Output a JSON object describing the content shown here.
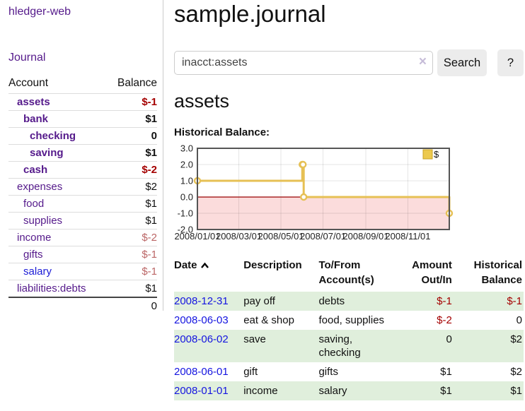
{
  "sidebar": {
    "app_title": "hledger-web",
    "journal_label": "Journal",
    "accounts_table": {
      "headers": [
        "Account",
        "Balance"
      ],
      "rows": [
        {
          "label": "assets",
          "balance": "$-1",
          "indent": 1,
          "bold": true,
          "balance_tone": "negative-strong",
          "link_tone": "purple"
        },
        {
          "label": "bank",
          "balance": "$1",
          "indent": 2,
          "bold": true,
          "balance_tone": "normal",
          "link_tone": "purple"
        },
        {
          "label": "checking",
          "balance": "0",
          "indent": 3,
          "bold": true,
          "balance_tone": "normal",
          "link_tone": "purple"
        },
        {
          "label": "saving",
          "balance": "$1",
          "indent": 3,
          "bold": true,
          "balance_tone": "normal",
          "link_tone": "purple"
        },
        {
          "label": "cash",
          "balance": "$-2",
          "indent": 2,
          "bold": true,
          "balance_tone": "negative-strong",
          "link_tone": "purple"
        },
        {
          "label": "expenses",
          "balance": "$2",
          "indent": 1,
          "bold": false,
          "balance_tone": "normal",
          "link_tone": "purple"
        },
        {
          "label": "food",
          "balance": "$1",
          "indent": 2,
          "bold": false,
          "balance_tone": "normal",
          "link_tone": "purple"
        },
        {
          "label": "supplies",
          "balance": "$1",
          "indent": 2,
          "bold": false,
          "balance_tone": "normal",
          "link_tone": "purple"
        },
        {
          "label": "income",
          "balance": "$-2",
          "indent": 1,
          "bold": false,
          "balance_tone": "negative-soft",
          "link_tone": "purple"
        },
        {
          "label": "gifts",
          "balance": "$-1",
          "indent": 2,
          "bold": false,
          "balance_tone": "negative-soft",
          "link_tone": "purple"
        },
        {
          "label": "salary",
          "balance": "$-1",
          "indent": 2,
          "bold": false,
          "balance_tone": "negative-soft",
          "link_tone": "blue"
        },
        {
          "label": "liabilities:debts",
          "balance": "$1",
          "indent": 1,
          "bold": false,
          "balance_tone": "normal",
          "link_tone": "purple"
        }
      ],
      "total": "0"
    }
  },
  "header": {
    "title": "sample.journal",
    "search": {
      "value": "inacct:assets",
      "clear_icon": "×",
      "button_label": "Search",
      "help_label": "?"
    }
  },
  "account_page": {
    "title": "assets",
    "chart_label": "Historical Balance:"
  },
  "chart_data": {
    "type": "line",
    "step": true,
    "title": "Historical Balance:",
    "legend": "$",
    "legend_position": "top-right",
    "grid": true,
    "ylim": [
      -2.0,
      3.0
    ],
    "yticks": [
      "3.0",
      "2.0",
      "1.0",
      "0.0",
      "-1.0",
      "-2.0"
    ],
    "xticks": [
      "2008/01/01",
      "2008/03/01",
      "2008/05/01",
      "2008/07/01",
      "2008/09/01",
      "2008/11/01"
    ],
    "series": [
      {
        "name": "$",
        "points": [
          [
            "2008-01-01",
            1
          ],
          [
            "2008-06-01",
            2
          ],
          [
            "2008-06-02",
            2
          ],
          [
            "2008-06-03",
            0
          ],
          [
            "2008-12-31",
            -1
          ]
        ]
      }
    ],
    "colors": {
      "line": "#e6c054",
      "marker_fill": "#ffffff",
      "legend_fill": "#ecc94e",
      "legend_border": "#c9a227",
      "negative_area": "#fbdcdc",
      "zero_line": "#990000",
      "grid": "#000000",
      "border": "#555555",
      "tick_text": "#222222"
    }
  },
  "register_table": {
    "headers": [
      "Date",
      "Description",
      "To/From Account(s)",
      "Amount Out/In",
      "Historical Balance"
    ],
    "sort_icon": "chevron-up",
    "rows": [
      {
        "date": "2008-12-31",
        "description": "pay off",
        "accounts": "debts",
        "amount": "$-1",
        "balance": "$-1"
      },
      {
        "date": "2008-06-03",
        "description": "eat & shop",
        "accounts": "food, supplies",
        "amount": "$-2",
        "balance": "0"
      },
      {
        "date": "2008-06-02",
        "description": "save",
        "accounts": "saving, checking",
        "amount": "0",
        "balance": "$2"
      },
      {
        "date": "2008-06-01",
        "description": "gift",
        "accounts": "gifts",
        "amount": "$1",
        "balance": "$2"
      },
      {
        "date": "2008-01-01",
        "description": "income",
        "accounts": "salary",
        "amount": "$1",
        "balance": "$1"
      }
    ]
  },
  "colors": {
    "link_purple": "#551a8b",
    "link_blue": "#1b1bd6",
    "date_link": "#1414e0",
    "negative_strong": "#a40000",
    "negative_soft": "#bb6666",
    "row_stripe": "#e0efdc"
  }
}
